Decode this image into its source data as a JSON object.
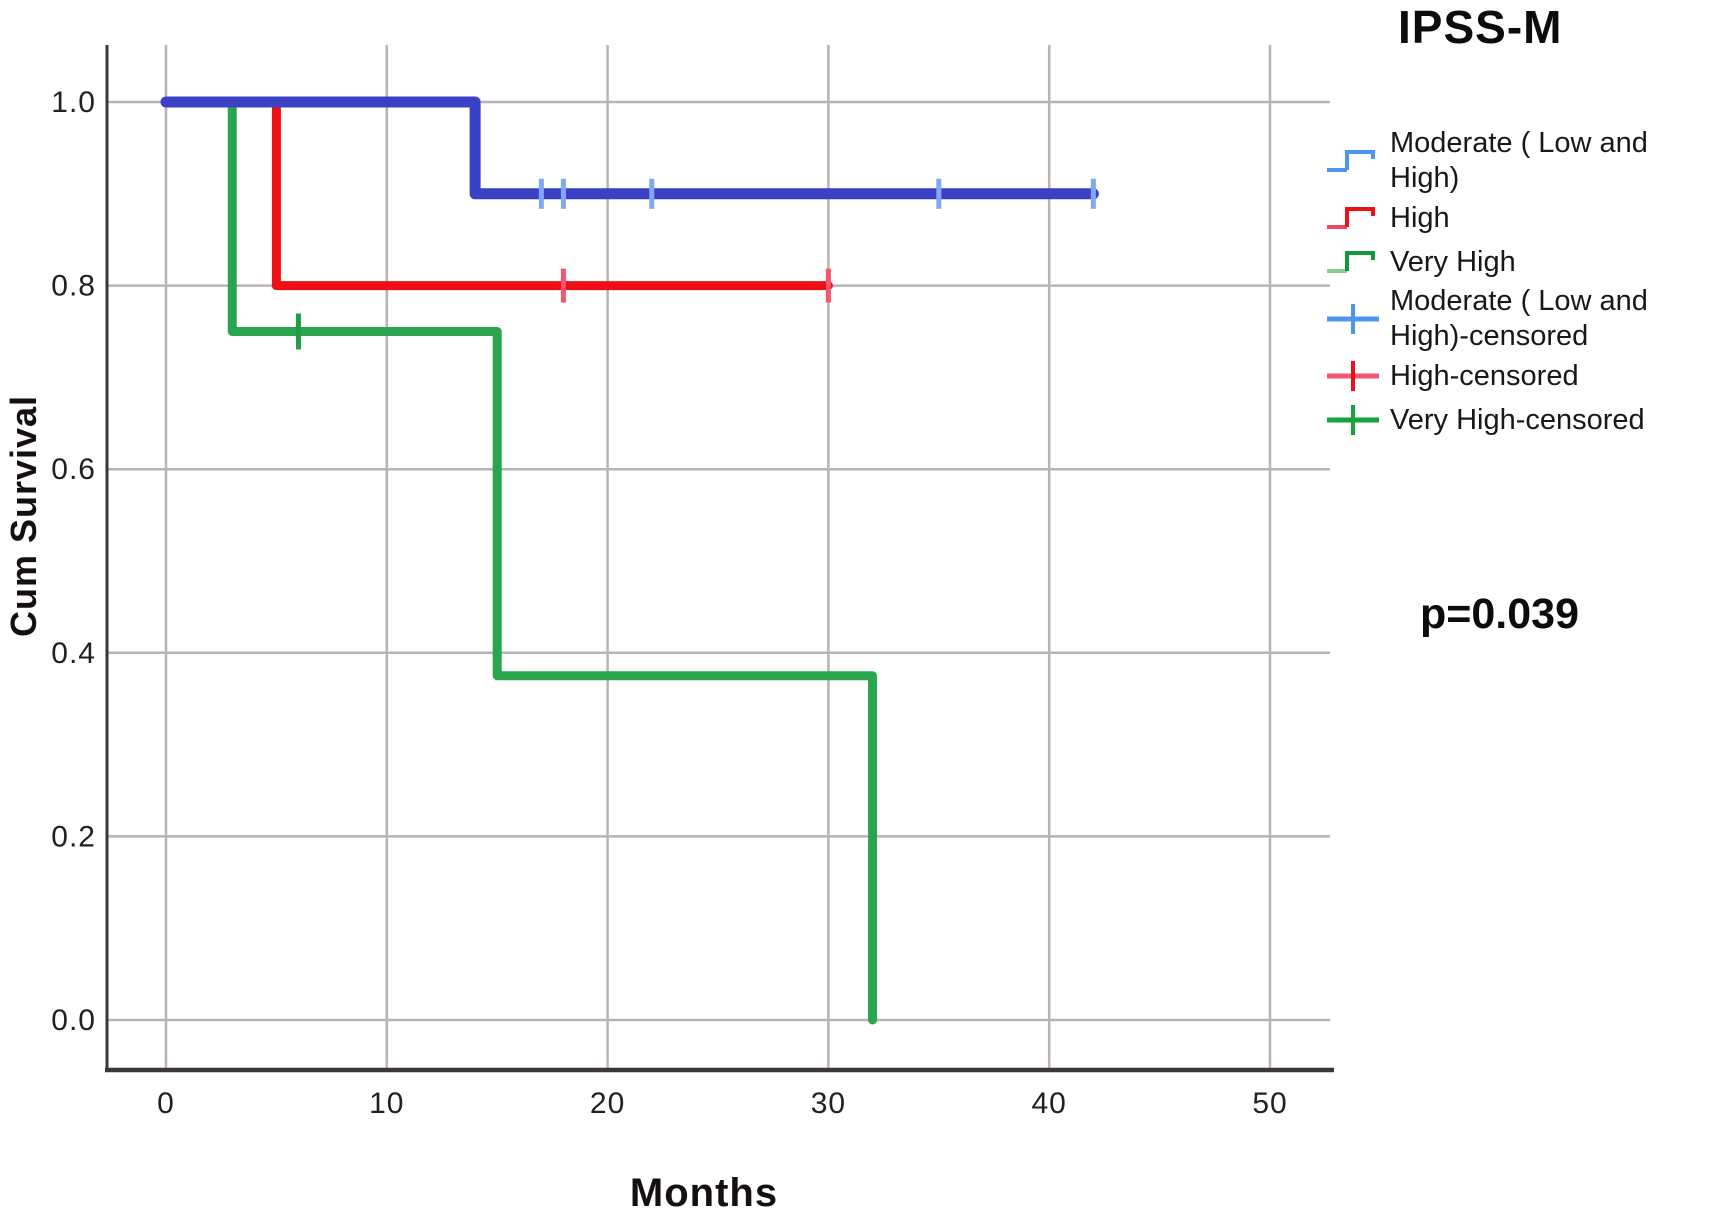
{
  "chart_data": {
    "type": "line",
    "subtype": "kaplan_meier_step",
    "title": "IPSS-M",
    "xlabel": "Months",
    "ylabel": "Cum Survival",
    "annotation": "p=0.039",
    "x_ticks": [
      0,
      10,
      20,
      30,
      40,
      50
    ],
    "x_tick_labels": [
      "0",
      "10",
      "20",
      "30",
      "40",
      "50"
    ],
    "y_ticks": [
      1.0,
      0.8,
      0.6,
      0.4,
      0.2,
      0.0
    ],
    "y_tick_labels": [
      "1.0",
      "0.8",
      "0.6",
      "0.4",
      "0.2",
      "0.0"
    ],
    "xlim": [
      -2.7,
      52.8
    ],
    "ylim": [
      -0.055,
      1.115
    ],
    "grid": true,
    "legend_position": "right",
    "series": [
      {
        "name": "Moderate ( Low and High)",
        "color": "#3a41c5",
        "censor_color": "#7fa9f7",
        "line_width": 11,
        "points": [
          [
            0,
            1.0
          ],
          [
            14,
            1.0
          ],
          [
            14,
            0.9
          ],
          [
            42,
            0.9
          ]
        ],
        "censored": [
          [
            17,
            0.9
          ],
          [
            18,
            0.9
          ],
          [
            22,
            0.9
          ],
          [
            35,
            0.9
          ],
          [
            42,
            0.9
          ]
        ]
      },
      {
        "name": "High",
        "color": "#ee1016",
        "censor_color": "#f4566d",
        "line_width": 9,
        "points": [
          [
            0,
            1.0
          ],
          [
            5,
            1.0
          ],
          [
            5,
            0.8
          ],
          [
            30,
            0.8
          ]
        ],
        "censored": [
          [
            18,
            0.8
          ],
          [
            30,
            0.8
          ]
        ]
      },
      {
        "name": "Very High",
        "color": "#29a44f",
        "censor_color": "#1f9e46",
        "line_width": 9,
        "points": [
          [
            0,
            1.0
          ],
          [
            3,
            1.0
          ],
          [
            3,
            0.75
          ],
          [
            15,
            0.75
          ],
          [
            15,
            0.375
          ],
          [
            32,
            0.375
          ],
          [
            32,
            0.0
          ]
        ],
        "censored": [
          [
            6,
            0.75
          ]
        ]
      }
    ],
    "legend": [
      {
        "label": "Moderate ( Low and High)",
        "type": "step",
        "color": "#4f94ee"
      },
      {
        "label": "High",
        "type": "step",
        "color": "#ee1016",
        "color2": "#f2485e"
      },
      {
        "label": "Very High",
        "type": "step",
        "color": "#0f9a3d",
        "color2": "#86cf8f"
      },
      {
        "label": "Moderate ( Low and High)-censored",
        "type": "censored",
        "color": "#4f94ee",
        "color2": "#4f94ee"
      },
      {
        "label": "High-censored",
        "type": "censored",
        "color": "#f4566d",
        "color2": "#ee1016"
      },
      {
        "label": "Very High-censored",
        "type": "censored",
        "color": "#18a23c",
        "color2": "#18a23c"
      }
    ],
    "colors": {
      "grid": "#bab3b3",
      "axis": "#3c3636",
      "text": "#1c1717"
    }
  }
}
